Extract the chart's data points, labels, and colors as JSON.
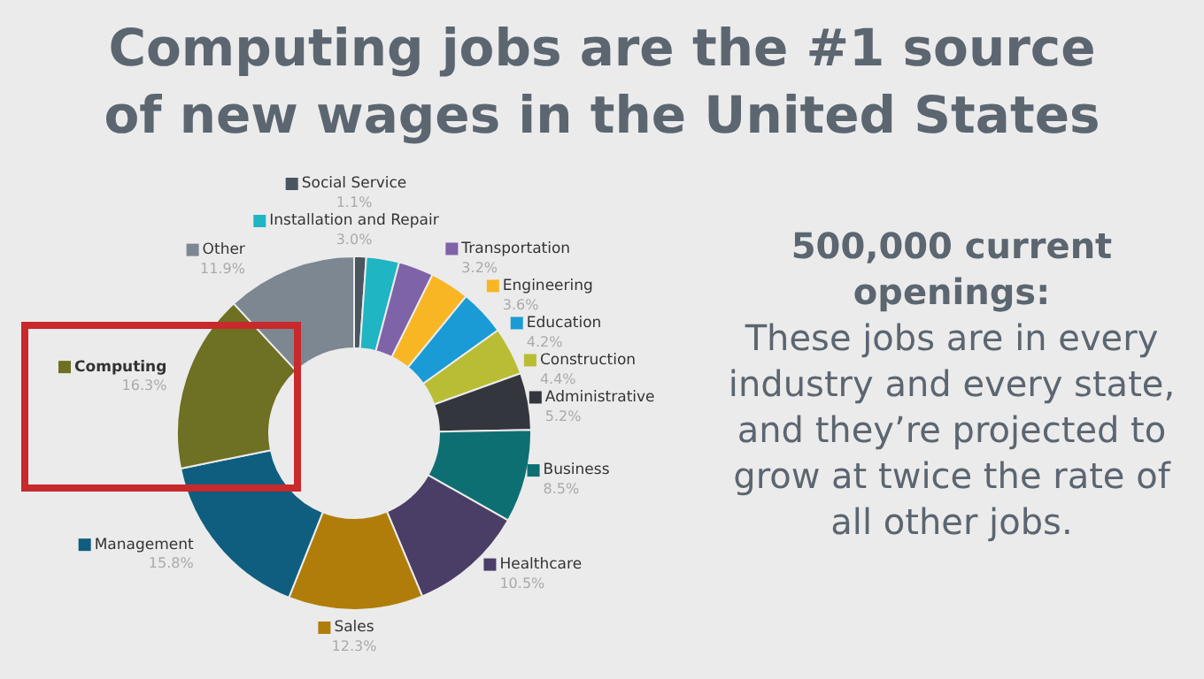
{
  "chart_data": {
    "type": "donut",
    "title": "Computing jobs are the #1 source of new wages in the United States",
    "categories": [
      "Social Service",
      "Installation and Repair",
      "Transportation",
      "Engineering",
      "Education",
      "Construction",
      "Administrative",
      "Business",
      "Healthcare",
      "Sales",
      "Management",
      "Computing",
      "Other"
    ],
    "values": [
      1.1,
      3.0,
      3.2,
      3.6,
      4.2,
      4.4,
      5.2,
      8.5,
      10.5,
      12.3,
      15.8,
      16.3,
      11.9
    ],
    "value_labels": [
      "1.1%",
      "3.0%",
      "3.2%",
      "3.6%",
      "4.2%",
      "4.4%",
      "5.2%",
      "8.5%",
      "10.5%",
      "12.3%",
      "15.8%",
      "16.3%",
      "11.9%"
    ],
    "colors": [
      "#4a5560",
      "#1fb5c2",
      "#7e63a8",
      "#f9b624",
      "#1a9bd6",
      "#b8bd33",
      "#33363d",
      "#0e6f73",
      "#4a3d66",
      "#b07d0a",
      "#0f5e80",
      "#6e7023",
      "#7d8792"
    ],
    "legend": "right",
    "annotations": [
      "500,000 current openings:",
      "These jobs are in every industry and every state, and they’re projected to grow at twice the rate of all other jobs."
    ]
  }
}
